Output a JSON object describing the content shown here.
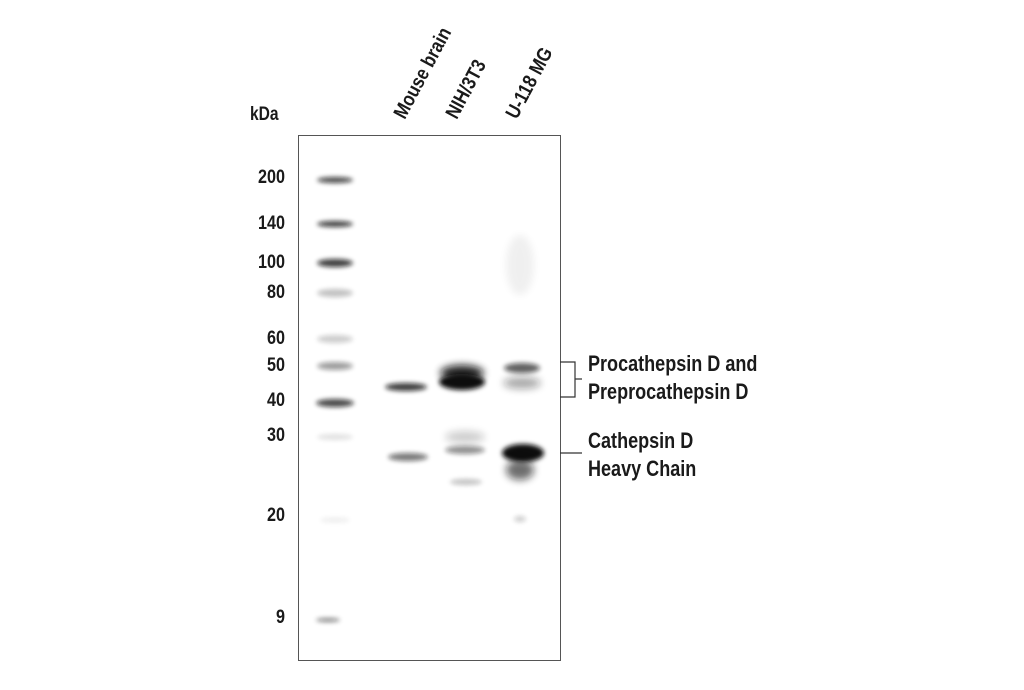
{
  "figure": {
    "unit_label": "kDa",
    "lanes": [
      "Mouse brain",
      "NIH/3T3",
      "U-118 MG"
    ],
    "markers": [
      "200",
      "140",
      "100",
      "80",
      "60",
      "50",
      "40",
      "30",
      "20",
      "9"
    ],
    "annotations": {
      "pro_line1": "Procathepsin D and",
      "pro_line2": "Preprocathepsin D",
      "heavy_line1": "Cathepsin D",
      "heavy_line2": "Heavy Chain"
    }
  }
}
